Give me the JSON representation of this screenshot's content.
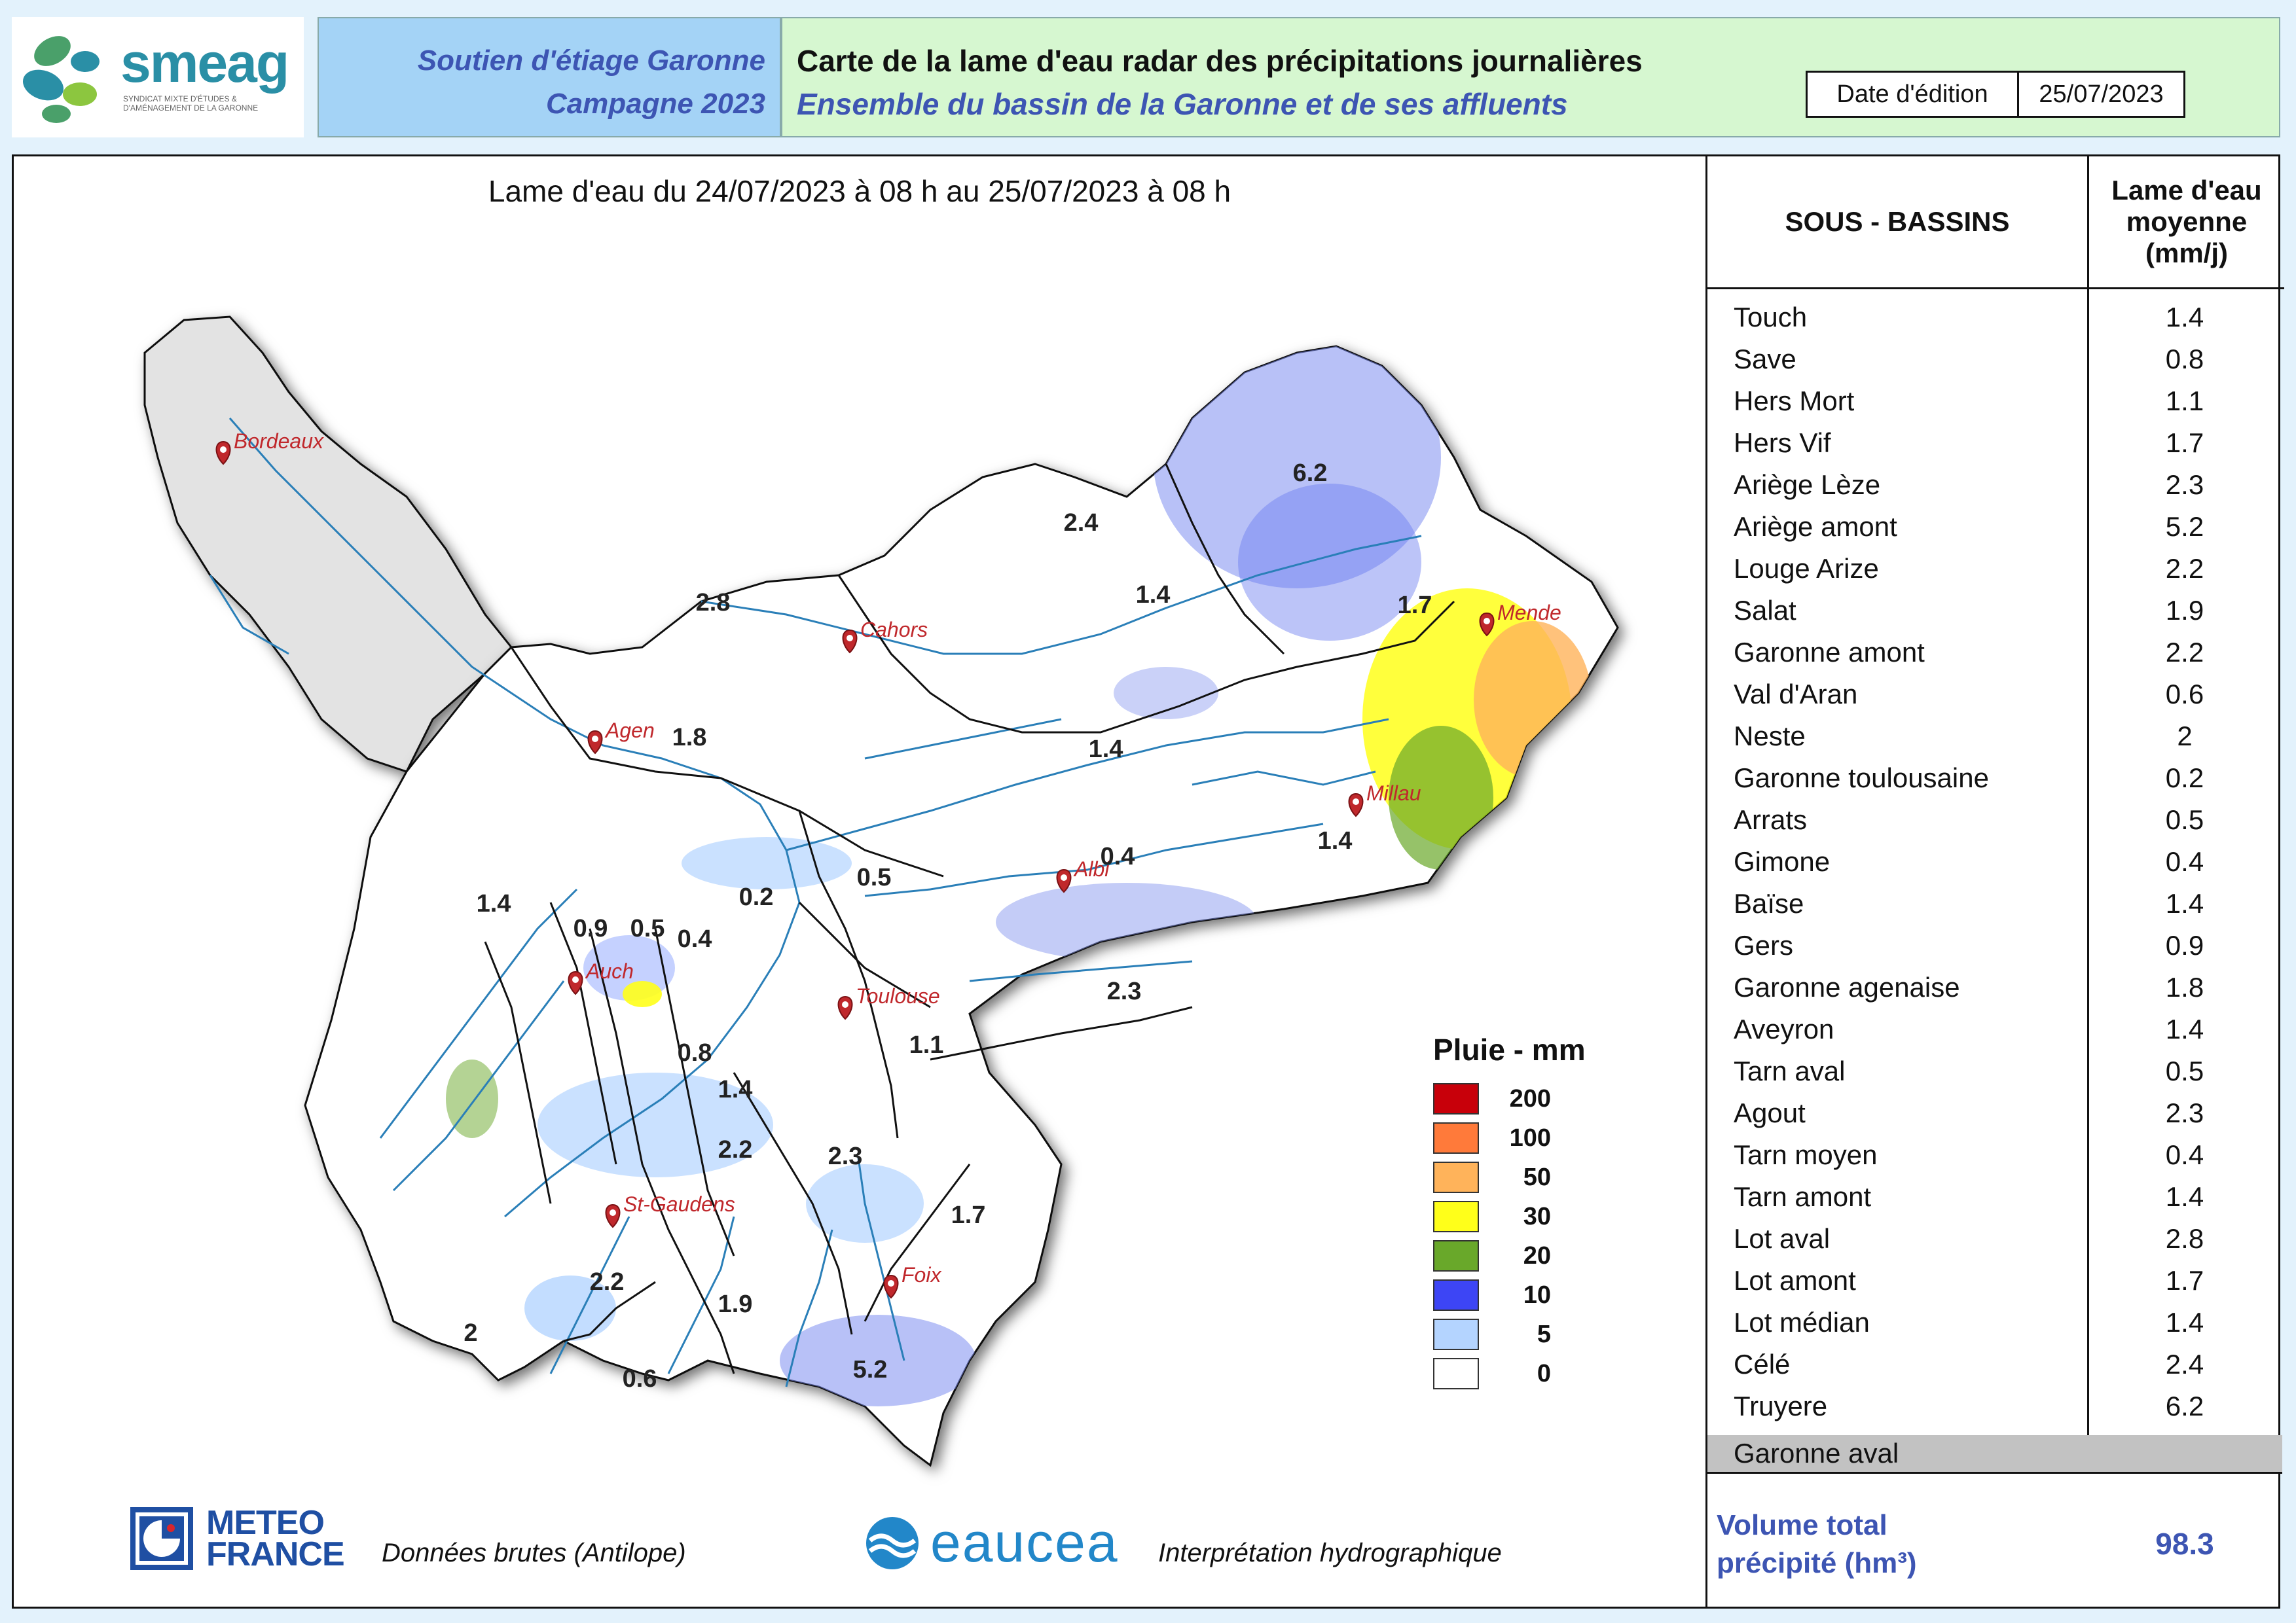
{
  "header": {
    "logo": {
      "name": "smeag",
      "subtitle": "SYNDICAT MIXTE D'ÉTUDES & D'AMÉNAGEMENT DE LA GARONNE"
    },
    "program": {
      "line1": "Soutien d'étiage Garonne",
      "line2": "Campagne 2023"
    },
    "title": {
      "line1": "Carte de la lame d'eau radar des précipitations journalières",
      "line2": "Ensemble du bassin de la Garonne et de ses affluents"
    },
    "edition_label": "Date d'édition",
    "edition_date": "25/07/2023"
  },
  "map": {
    "title": "Lame d'eau du 24/07/2023  à 08 h au  25/07/2023   à 08 h",
    "cities": [
      {
        "name": "Bordeaux"
      },
      {
        "name": "Cahors"
      },
      {
        "name": "Agen"
      },
      {
        "name": "Mende"
      },
      {
        "name": "Millau"
      },
      {
        "name": "Albi"
      },
      {
        "name": "Auch"
      },
      {
        "name": "Toulouse"
      },
      {
        "name": "St-Gaudens"
      },
      {
        "name": "Foix"
      }
    ],
    "basin_values": [
      "6.2",
      "2.4",
      "1.4",
      "2.8",
      "1.7",
      "1.8",
      "1.4",
      "0.4",
      "0.5",
      "1.4",
      "1.4",
      "0.2",
      "0.9",
      "0.5",
      "0.4",
      "0.8",
      "2.3",
      "1.4",
      "1.1",
      "2.2",
      "2.3",
      "1.7",
      "2.2",
      "1.9",
      "2",
      "0.6",
      "5.2"
    ],
    "colors": {
      "land": "#ffffff",
      "outside_area": "#e3e3e3",
      "river": "#2a7fb8",
      "border": "#111111"
    }
  },
  "legend": {
    "title": "Pluie - mm",
    "items": [
      {
        "label": "200",
        "color": "#c8000a"
      },
      {
        "label": "100",
        "color": "#ff7a3a"
      },
      {
        "label": "50",
        "color": "#ffb35a"
      },
      {
        "label": "30",
        "color": "#ffff1a"
      },
      {
        "label": "20",
        "color": "#69a82a"
      },
      {
        "label": "10",
        "color": "#3d45f5"
      },
      {
        "label": "5",
        "color": "#b4d4ff"
      },
      {
        "label": "0",
        "color": "#ffffff"
      }
    ]
  },
  "footer": {
    "meteo_france": {
      "line1": "METEO",
      "line2": "FRANCE"
    },
    "source1": "Données brutes (Antilope)",
    "eaucea": "eaucea",
    "source2": "Interprétation hydrographique"
  },
  "table": {
    "col1": "SOUS - BASSINS",
    "col2_l1": "Lame d'eau",
    "col2_l2": "moyenne",
    "col2_l3": "(mm/j)",
    "rows": [
      {
        "name": "Touch",
        "value": "1.4"
      },
      {
        "name": "Save",
        "value": "0.8"
      },
      {
        "name": "Hers Mort",
        "value": "1.1"
      },
      {
        "name": "Hers Vif",
        "value": "1.7"
      },
      {
        "name": "Ariège Lèze",
        "value": "2.3"
      },
      {
        "name": "Ariège amont",
        "value": "5.2"
      },
      {
        "name": "Louge Arize",
        "value": "2.2"
      },
      {
        "name": "Salat",
        "value": "1.9"
      },
      {
        "name": "Garonne amont",
        "value": "2.2"
      },
      {
        "name": "Val d'Aran",
        "value": "0.6"
      },
      {
        "name": "Neste",
        "value": "2"
      },
      {
        "name": "Garonne toulousaine",
        "value": "0.2"
      },
      {
        "name": "Arrats",
        "value": "0.5"
      },
      {
        "name": "Gimone",
        "value": "0.4"
      },
      {
        "name": "Baïse",
        "value": "1.4"
      },
      {
        "name": "Gers",
        "value": "0.9"
      },
      {
        "name": "Garonne agenaise",
        "value": "1.8"
      },
      {
        "name": "Aveyron",
        "value": "1.4"
      },
      {
        "name": "Tarn aval",
        "value": "0.5"
      },
      {
        "name": "Agout",
        "value": "2.3"
      },
      {
        "name": "Tarn moyen",
        "value": "0.4"
      },
      {
        "name": "Tarn amont",
        "value": "1.4"
      },
      {
        "name": "Lot aval",
        "value": "2.8"
      },
      {
        "name": "Lot amont",
        "value": "1.7"
      },
      {
        "name": "Lot médian",
        "value": "1.4"
      },
      {
        "name": "Célé",
        "value": "2.4"
      },
      {
        "name": "Truyere",
        "value": "6.2"
      }
    ],
    "garonne_aval": "Garonne aval",
    "total_label_l1": "Volume total",
    "total_label_l2": "précipité (hm³)",
    "total_value": "98.3"
  }
}
